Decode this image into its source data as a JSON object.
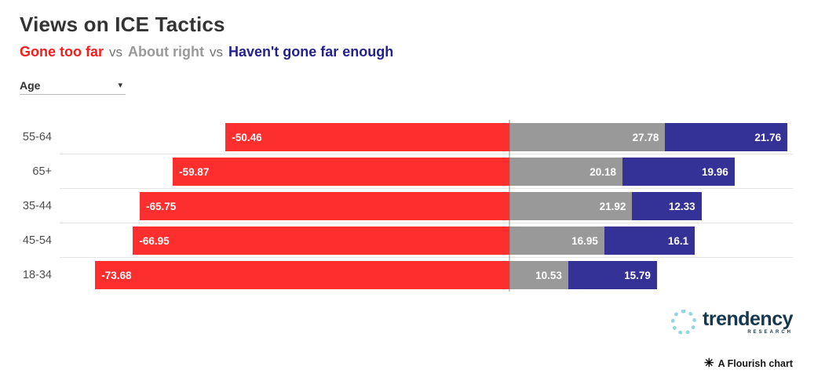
{
  "header": {
    "title": "Views on ICE Tactics",
    "subtitle_parts": [
      {
        "text": "Gone too far",
        "color": "#f81d1d"
      },
      {
        "text": "vs",
        "color": "#737373"
      },
      {
        "text": "About right",
        "color": "#999999"
      },
      {
        "text": "vs",
        "color": "#737373"
      },
      {
        "text": "Haven't gone far enough",
        "color": "#221f91"
      }
    ]
  },
  "controls": {
    "filter": {
      "label": "Age",
      "caret_icon": "▾"
    }
  },
  "chart_data": {
    "type": "bar",
    "subtype": "diverging stacked horizontal bars",
    "title": "Views on ICE Tactics",
    "categories": [
      "55-64",
      "65+",
      "35-44",
      "45-54",
      "18-34"
    ],
    "series": [
      {
        "name": "Gone too far",
        "color": "#fc2e2e",
        "values": [
          -50.46,
          -59.87,
          -65.75,
          -66.95,
          -73.68
        ]
      },
      {
        "name": "About right",
        "color": "#999999",
        "values": [
          27.78,
          20.18,
          21.92,
          16.95,
          10.53
        ]
      },
      {
        "name": "Haven't gone far enough",
        "color": "#343197",
        "values": [
          21.76,
          19.96,
          12.33,
          16.1,
          15.79
        ]
      }
    ],
    "xlim": [
      -80,
      50.5
    ],
    "value_labels": "inside bars, white",
    "grid": "horizontal row separators only",
    "zero_line": true,
    "legend_position": "subtitle line"
  },
  "footer": {
    "brand_name": "trendency",
    "brand_sub": "RESEARCH",
    "attribution_icon": "✳",
    "attribution_text": "A Flourish chart"
  }
}
